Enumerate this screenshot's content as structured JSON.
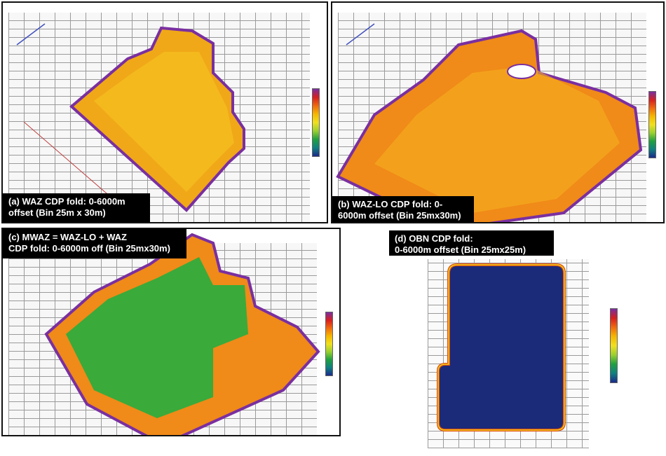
{
  "panels": [
    {
      "id": "a",
      "label": "(a) WAZ CDP fold: 0-6000m\noffset (Bin 25m x 30m)"
    },
    {
      "id": "b",
      "label": "(b) WAZ-LO  CDP fold: 0-\n6000m offset (Bin 25mx30m)"
    },
    {
      "id": "c",
      "label": "(c) MWAZ = WAZ-LO + WAZ\nCDP fold: 0-6000m off (Bin 25mx30m)"
    },
    {
      "id": "d",
      "label": "(d) OBN CDP fold:\n 0-6000m offset (Bin 25mx25m)"
    }
  ],
  "colorbar_colors": [
    "#7a2fa0",
    "#d62020",
    "#f06a10",
    "#f5b800",
    "#f0e020",
    "#9ad030",
    "#20a040",
    "#108080",
    "#1a2a8a"
  ],
  "fill_colors": {
    "waz": "#f0a818",
    "waz_lo": "#f08a18",
    "mwaz": "#3aaa3a",
    "obn": "#1c2a7a",
    "edge": "#7a2fa0"
  }
}
